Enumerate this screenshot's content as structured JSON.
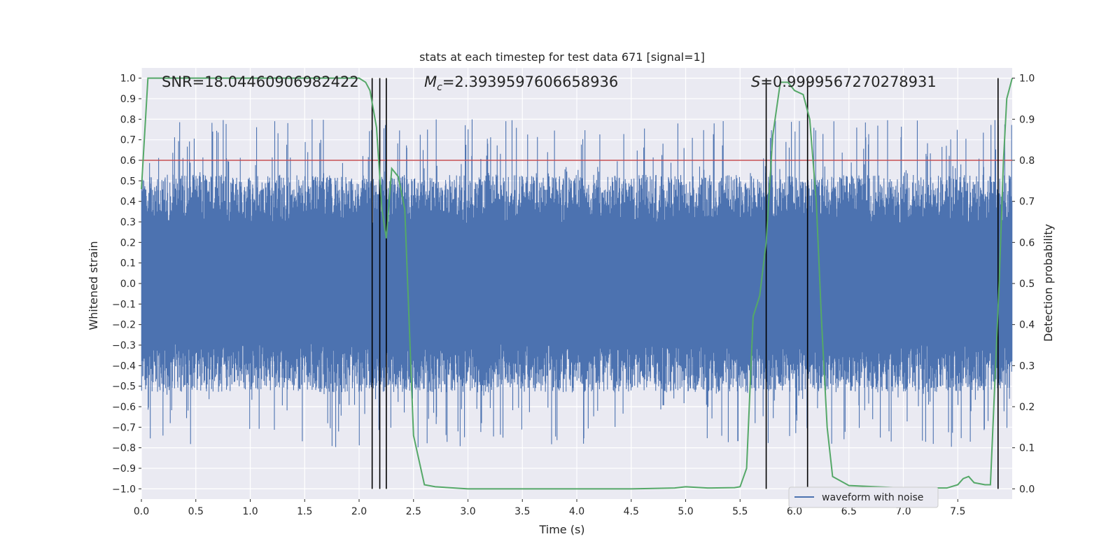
{
  "chart_data": {
    "type": "line",
    "title": "stats at each timestep for test data 671 [signal=1]",
    "xlabel": "Time (s)",
    "ylabel": "Whitened strain",
    "y2label": "Detection probability",
    "xlim": [
      0.0,
      8.0
    ],
    "ylim": [
      -1.05,
      1.05
    ],
    "y2lim": [
      -0.025,
      1.025
    ],
    "xticks": [
      0.0,
      0.5,
      1.0,
      1.5,
      2.0,
      2.5,
      3.0,
      3.5,
      4.0,
      4.5,
      5.0,
      5.5,
      6.0,
      6.5,
      7.0,
      7.5
    ],
    "xtick_labels": [
      "0.0",
      "0.5",
      "1.0",
      "1.5",
      "2.0",
      "2.5",
      "3.0",
      "3.5",
      "4.0",
      "4.5",
      "5.0",
      "5.5",
      "6.0",
      "6.5",
      "7.0",
      "7.5"
    ],
    "yticks": [
      1.0,
      0.9,
      0.8,
      0.7,
      0.6,
      0.5,
      0.4,
      0.3,
      0.2,
      0.1,
      0.0,
      -0.1,
      -0.2,
      -0.3,
      -0.4,
      -0.5,
      -0.6,
      -0.7,
      -0.8,
      -0.9,
      -1.0
    ],
    "ytick_labels": [
      "1.0",
      "0.9",
      "0.8",
      "0.7",
      "0.6",
      "0.5",
      "0.4",
      "0.3",
      "0.2",
      "0.1",
      "0.0",
      "−0.1",
      "−0.2",
      "−0.3",
      "−0.4",
      "−0.5",
      "−0.6",
      "−0.7",
      "−0.8",
      "−0.9",
      "−1.0"
    ],
    "y2ticks": [
      1.0,
      0.9,
      0.8,
      0.7,
      0.6,
      0.5,
      0.4,
      0.3,
      0.2,
      0.1,
      0.0
    ],
    "y2tick_labels": [
      "1.0",
      "0.9",
      "0.8",
      "0.7",
      "0.6",
      "0.5",
      "0.4",
      "0.3",
      "0.2",
      "0.1",
      "0.0"
    ],
    "grid": true,
    "legend": {
      "position": "lower-right",
      "entries": [
        {
          "label": "waveform with noise",
          "color": "#4c72b0"
        }
      ]
    },
    "annotations": {
      "snr": "SNR=18.04460906982422",
      "mc_symbol": "M",
      "mc_sub": "c",
      "mc_value": "=2.3939597606658936",
      "s_symbol": "S",
      "s_value": "=0.9999567270278931"
    },
    "threshold": {
      "y2": 0.8,
      "color": "#c44e52"
    },
    "trigger_lines": [
      2.12,
      2.19,
      2.25,
      5.74,
      6.12,
      7.87
    ],
    "waveform": {
      "name": "waveform with noise",
      "color": "#4c72b0",
      "t_range": [
        0.0,
        8.0
      ],
      "core_amplitude": 0.25,
      "peak_range": [
        -0.86,
        0.86
      ]
    },
    "detection_probability": {
      "color": "#55a868",
      "t": [
        0.0,
        0.06,
        0.25,
        0.5,
        1.0,
        1.5,
        1.7,
        2.0,
        2.06,
        2.1,
        2.16,
        2.21,
        2.25,
        2.3,
        2.36,
        2.42,
        2.5,
        2.6,
        2.7,
        3.0,
        3.5,
        4.0,
        4.5,
        4.9,
        5.0,
        5.2,
        5.45,
        5.5,
        5.56,
        5.62,
        5.68,
        5.74,
        5.8,
        5.87,
        5.94,
        6.0,
        6.08,
        6.14,
        6.2,
        6.25,
        6.3,
        6.35,
        6.5,
        7.0,
        7.4,
        7.5,
        7.55,
        7.6,
        7.65,
        7.75,
        7.8,
        7.88,
        7.92,
        7.95,
        8.0
      ],
      "values": [
        0.73,
        1.0,
        1.0,
        1.0,
        1.0,
        1.0,
        1.0,
        1.0,
        0.99,
        0.97,
        0.88,
        0.68,
        0.61,
        0.78,
        0.76,
        0.68,
        0.13,
        0.01,
        0.005,
        0.0,
        0.0,
        0.0,
        0.0,
        0.002,
        0.005,
        0.002,
        0.003,
        0.005,
        0.05,
        0.42,
        0.47,
        0.6,
        0.86,
        0.99,
        0.99,
        0.97,
        0.96,
        0.9,
        0.7,
        0.4,
        0.15,
        0.03,
        0.008,
        0.002,
        0.002,
        0.01,
        0.025,
        0.03,
        0.015,
        0.01,
        0.01,
        0.5,
        0.8,
        0.95,
        1.0
      ]
    }
  }
}
